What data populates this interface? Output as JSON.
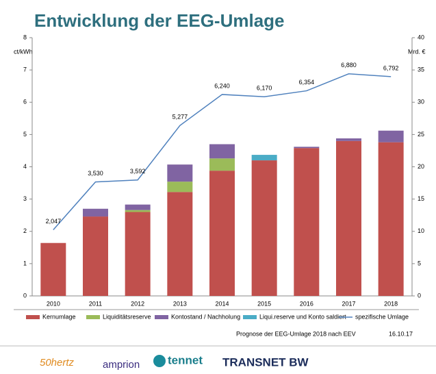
{
  "chart_data": {
    "type": "bar",
    "title": "Entwicklung der EEG-Umlage",
    "y_label": "ct/kWh",
    "y2_label": "Mrd. €",
    "categories": [
      "2010",
      "2011",
      "2012",
      "2013",
      "2014",
      "2015",
      "2016",
      "2017",
      "2018"
    ],
    "ylim": [
      0,
      8
    ],
    "yticks": [
      0,
      1,
      2,
      3,
      4,
      5,
      6,
      7,
      8
    ],
    "y2lim": [
      0,
      40
    ],
    "y2ticks": [
      0,
      5,
      10,
      15,
      20,
      25,
      30,
      35,
      40
    ],
    "series": [
      {
        "name": "Kernumlage",
        "type": "bar",
        "axis": "y2",
        "color": "#c0504d",
        "values": [
          8.2,
          12.3,
          13.0,
          16.1,
          19.4,
          21.0,
          22.9,
          24.0,
          23.8
        ]
      },
      {
        "name": "Liquiditätsreserve",
        "type": "bar",
        "axis": "y2",
        "color": "#9bbb59",
        "values": [
          0,
          0,
          0.3,
          1.6,
          1.9,
          0,
          0,
          0,
          0
        ]
      },
      {
        "name": "Kontostand / Nachholung",
        "type": "bar",
        "axis": "y2",
        "color": "#8064a2",
        "values": [
          0,
          1.2,
          0.85,
          2.65,
          2.2,
          0,
          0.2,
          0.4,
          1.8
        ]
      },
      {
        "name": "Liqui.reserve und Konto saldiert",
        "type": "bar",
        "axis": "y2",
        "color": "#4bacc6",
        "values": [
          0,
          0,
          0,
          0,
          0,
          0.85,
          0,
          0,
          0
        ]
      },
      {
        "name": "spezifische Umlage",
        "type": "line",
        "color": "#4f81bd",
        "values": [
          2.047,
          3.53,
          3.592,
          5.277,
          6.24,
          6.17,
          6.354,
          6.88,
          6.792
        ],
        "value_labels": [
          "2,047",
          "3,530",
          "3,592",
          "5,277",
          "6,240",
          "6,170",
          "6,354",
          "6,880",
          "6,792"
        ]
      }
    ]
  },
  "footer": {
    "note": "Prognose der EEG-Umlage 2018 nach EEV",
    "date": "16.10.17",
    "logos": [
      "50hertz",
      "amprion",
      "tennet",
      "TRANSNET BW"
    ]
  }
}
